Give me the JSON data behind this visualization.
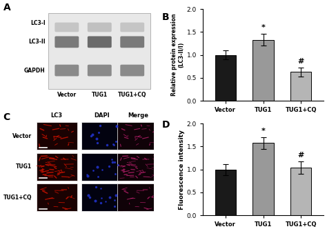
{
  "chart_B": {
    "categories": [
      "Vector",
      "TUG1",
      "TUG1+CQ"
    ],
    "values": [
      1.0,
      1.33,
      0.63
    ],
    "errors": [
      0.1,
      0.13,
      0.1
    ],
    "colors": [
      "#1a1a1a",
      "#999999",
      "#b5b5b5"
    ],
    "ylabel": "Relative protein expression\n(LC3-II/I)",
    "ylim": [
      0,
      2.0
    ],
    "yticks": [
      0.0,
      0.5,
      1.0,
      1.5,
      2.0
    ],
    "label": "B",
    "stars": [
      "",
      "*",
      "#"
    ]
  },
  "chart_D": {
    "categories": [
      "Vector",
      "TUG1",
      "TUG1+CQ"
    ],
    "values": [
      1.0,
      1.58,
      1.04
    ],
    "errors": [
      0.12,
      0.13,
      0.13
    ],
    "colors": [
      "#1a1a1a",
      "#999999",
      "#b5b5b5"
    ],
    "ylabel": "Fluorescence intensity",
    "ylim": [
      0,
      2.0
    ],
    "yticks": [
      0.0,
      0.5,
      1.0,
      1.5,
      2.0
    ],
    "label": "D",
    "stars": [
      "",
      "*",
      "#"
    ]
  },
  "panel_A": {
    "label": "A",
    "gel_bg": "#e8e8e8",
    "band_lc3i_colors": [
      "#c5c5c5",
      "#c0c0c0",
      "#c5c5c5"
    ],
    "band_lc3ii_colors": [
      "#7a7a7a",
      "#6a6a6a",
      "#7a7a7a"
    ],
    "band_gapdh_colors": [
      "#8a8a8a",
      "#8a8a8a",
      "#8a8a8a"
    ],
    "row_labels": [
      "LC3-I",
      "LC3-II",
      "GAPDH"
    ],
    "col_labels": [
      "Vector",
      "TUG1",
      "TUG1+CQ"
    ]
  },
  "panel_C": {
    "label": "C",
    "col_labels": [
      "LC3",
      "DAPI",
      "Merge"
    ],
    "row_labels": [
      "Vector",
      "TUG1",
      "TUG1+CQ"
    ],
    "lc3_bg": [
      "#1a0202",
      "#1a0202",
      "#1a0202"
    ],
    "dapi_bg": [
      "#020210",
      "#020210",
      "#020210"
    ],
    "merge_bg": [
      "#100208",
      "#100208",
      "#100208"
    ]
  }
}
